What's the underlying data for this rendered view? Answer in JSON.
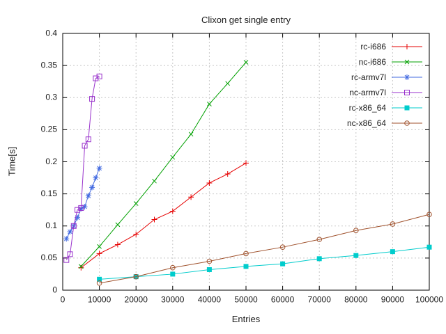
{
  "chart_data": {
    "type": "line",
    "title": "Clixon get single entry",
    "xlabel": "Entries",
    "ylabel": "Time[s]",
    "xlim": [
      0,
      100000
    ],
    "ylim": [
      0,
      0.4
    ],
    "xtick_step": 10000,
    "ytick_step": 0.05,
    "grid": true,
    "grid_style": "dashed",
    "legend_position": "top-right-inside",
    "axis_color": "#000000",
    "grid_color": "#c8c8c8",
    "series": [
      {
        "name": "rc-i686",
        "color": "#e60000",
        "marker": "plus",
        "x": [
          5000,
          10000,
          15000,
          20000,
          25000,
          30000,
          35000,
          40000,
          45000,
          50000
        ],
        "y": [
          0.035,
          0.057,
          0.071,
          0.087,
          0.11,
          0.123,
          0.145,
          0.167,
          0.181,
          0.198
        ]
      },
      {
        "name": "nc-i686",
        "color": "#00a000",
        "marker": "cross",
        "x": [
          5000,
          10000,
          15000,
          20000,
          25000,
          30000,
          35000,
          40000,
          45000,
          50000
        ],
        "y": [
          0.037,
          0.068,
          0.102,
          0.135,
          0.17,
          0.207,
          0.243,
          0.29,
          0.322,
          0.355
        ]
      },
      {
        "name": "rc-armv7l",
        "color": "#4169e1",
        "marker": "asterisk",
        "x": [
          1000,
          2000,
          3000,
          4000,
          5000,
          6000,
          7000,
          8000,
          9000,
          10000
        ],
        "y": [
          0.08,
          0.091,
          0.1,
          0.113,
          0.127,
          0.13,
          0.147,
          0.16,
          0.175,
          0.19
        ]
      },
      {
        "name": "nc-armv7l",
        "color": "#9932cc",
        "marker": "open-square",
        "x": [
          1000,
          2000,
          3000,
          4000,
          5000,
          6000,
          7000,
          8000,
          9000,
          10000
        ],
        "y": [
          0.047,
          0.056,
          0.1,
          0.125,
          0.128,
          0.225,
          0.235,
          0.298,
          0.33,
          0.333
        ]
      },
      {
        "name": "rc-x86_64",
        "color": "#00cccc",
        "marker": "filled-square",
        "x": [
          10000,
          20000,
          30000,
          40000,
          50000,
          60000,
          70000,
          80000,
          90000,
          100000
        ],
        "y": [
          0.017,
          0.021,
          0.025,
          0.032,
          0.037,
          0.041,
          0.049,
          0.054,
          0.06,
          0.067
        ]
      },
      {
        "name": "nc-x86_64",
        "color": "#a0522d",
        "marker": "open-circle",
        "x": [
          10000,
          20000,
          30000,
          40000,
          50000,
          60000,
          70000,
          80000,
          90000,
          100000
        ],
        "y": [
          0.011,
          0.021,
          0.035,
          0.045,
          0.057,
          0.067,
          0.079,
          0.093,
          0.103,
          0.118
        ]
      }
    ]
  }
}
